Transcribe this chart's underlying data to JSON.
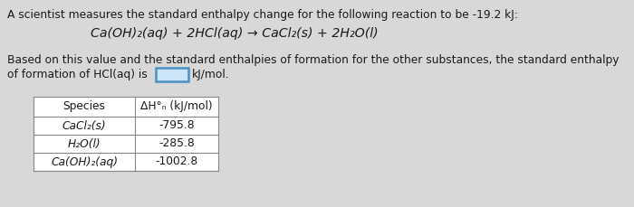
{
  "title_line1": "A scientist measures the standard enthalpy change for the following reaction to be -19.2 kJ:",
  "reaction": "Ca(OH)₂(aq) + 2HCl(aq) → CaCl₂(s) + 2H₂O(l)",
  "body_line1": "Based on this value and the standard enthalpies of formation for the other substances, the standard enthalpy",
  "body_line2": "of formation of HCl(aq) is",
  "body_line2_end": "kJ/mol.",
  "table_header_col1": "Species",
  "table_header_col2": "ΔH°ₙ (kJ/mol)",
  "table_rows": [
    [
      "CaCl₂(s)",
      "-795.8"
    ],
    [
      "H₂O(l)",
      "-285.8"
    ],
    [
      "Ca(OH)₂(aq)",
      "-1002.8"
    ]
  ],
  "bg_color": "#d8d8d8",
  "text_color": "#1a1a1a",
  "input_box_fill": "#cce4f7",
  "input_box_edge": "#4a90c4",
  "table_line_color": "#888888",
  "white": "#ffffff"
}
